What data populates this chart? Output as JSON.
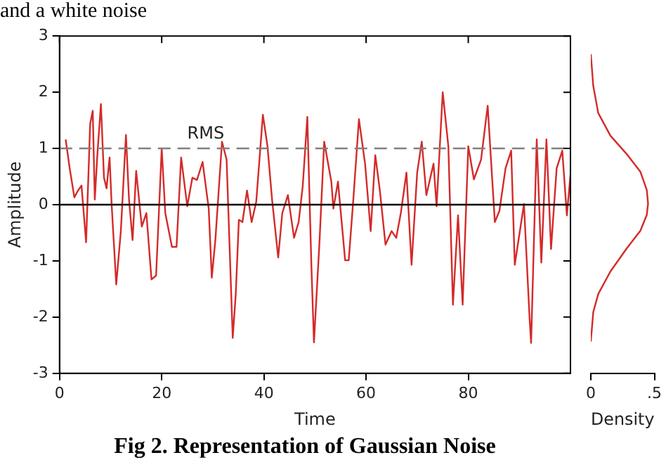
{
  "chart_data": [
    {
      "type": "line",
      "xlabel": "Time",
      "ylabel": "Amplitude",
      "color": "#d42a2a",
      "marker": "none",
      "line_style": "solid",
      "grid": false,
      "legend": false,
      "annotations": [
        "and a white noise",
        "Fig 2. Representation of Gaussian Noise"
      ],
      "xlim": [
        0,
        100
      ],
      "xticks": [
        0,
        20,
        40,
        60,
        80
      ],
      "ylim": [
        -3,
        3
      ],
      "yticks": [
        -3,
        -2,
        -1,
        0,
        1,
        2,
        3
      ],
      "ref_lines": [
        {
          "axis": "y",
          "value": 1,
          "label": "RMS",
          "color": "#808080",
          "line_style": "dashed"
        },
        {
          "axis": "y",
          "value": 0,
          "color": "#000000",
          "line_style": "solid"
        }
      ],
      "x": [
        1.2,
        2.0,
        2.9,
        3.6,
        4.3,
        5.2,
        6.0,
        6.5,
        6.9,
        7.4,
        8.1,
        8.7,
        9.2,
        9.8,
        10.2,
        11.1,
        12.0,
        13.0,
        13.6,
        14.3,
        15.0,
        16.1,
        17.0,
        18.0,
        18.9,
        20.0,
        20.7,
        22.0,
        22.9,
        23.8,
        25.0,
        26.0,
        26.9,
        28.0,
        29.2,
        29.8,
        30.5,
        31.8,
        32.7,
        33.9,
        34.5,
        35.1,
        35.8,
        36.7,
        37.6,
        38.5,
        39.8,
        40.7,
        41.6,
        42.8,
        43.6,
        44.7,
        45.9,
        46.8,
        47.6,
        48.5,
        49.3,
        49.8,
        50.9,
        51.8,
        53.2,
        53.6,
        54.5,
        55.9,
        56.6,
        57.5,
        58.6,
        59.8,
        60.9,
        61.8,
        62.7,
        63.8,
        65.0,
        65.9,
        66.8,
        67.9,
        68.9,
        70.0,
        70.9,
        71.8,
        73.2,
        73.8,
        75.0,
        76.1,
        77.0,
        78.0,
        78.9,
        80.0,
        81.1,
        82.5,
        83.8,
        85.2,
        86.1,
        87.3,
        88.4,
        89.1,
        90.9,
        92.0,
        92.3,
        93.4,
        94.3,
        95.3,
        96.2,
        97.3,
        98.4,
        99.3,
        100
      ],
      "values": [
        1.16,
        0.64,
        0.13,
        0.25,
        0.34,
        -0.67,
        1.44,
        1.67,
        0.09,
        0.88,
        1.79,
        0.48,
        0.29,
        0.84,
        0.0,
        -1.42,
        -0.47,
        1.24,
        0.09,
        -0.63,
        0.6,
        -0.39,
        -0.15,
        -1.33,
        -1.26,
        1.0,
        -0.15,
        -0.75,
        -0.75,
        0.84,
        -0.03,
        0.48,
        0.44,
        0.76,
        -0.07,
        -1.3,
        -0.63,
        1.12,
        0.8,
        -2.37,
        -1.58,
        -0.27,
        -0.31,
        0.25,
        -0.31,
        0.05,
        1.6,
        1.04,
        0.09,
        -0.94,
        -0.15,
        0.17,
        -0.59,
        -0.31,
        0.33,
        1.56,
        -1.1,
        -2.45,
        -0.63,
        1.12,
        0.41,
        -0.07,
        0.41,
        -0.99,
        -0.99,
        0.09,
        1.52,
        0.73,
        -0.47,
        0.88,
        0.25,
        -0.71,
        -0.47,
        -0.59,
        -0.15,
        0.57,
        -1.07,
        0.57,
        1.12,
        0.17,
        0.73,
        -0.03,
        2.0,
        1.04,
        -1.78,
        -0.19,
        -1.78,
        1.04,
        0.45,
        0.8,
        1.76,
        -0.31,
        -0.11,
        0.65,
        0.96,
        -1.07,
        0.01,
        -2.02,
        -2.46,
        1.16,
        -1.03,
        1.16,
        -0.79,
        0.65,
        0.96,
        -0.19,
        0.53
      ]
    },
    {
      "type": "line",
      "xlabel": "Density",
      "color": "#d42a2a",
      "marker": "none",
      "line_style": "solid",
      "grid": false,
      "legend": false,
      "tick_labels": "x",
      "xlim": [
        0,
        0.5
      ],
      "xticks": [
        0,
        {
          "value": 0.5,
          "label": ".5"
        }
      ],
      "ylim": [
        -3,
        3
      ],
      "x": [
        0,
        0.019,
        0.058,
        0.154,
        0.28,
        0.39,
        0.44,
        0.45,
        0.44,
        0.39,
        0.28,
        0.154,
        0.058,
        0.019,
        0
      ],
      "values": [
        2.64,
        2.08,
        1.6,
        1.2,
        0.88,
        0.56,
        0.24,
        0,
        -0.2,
        -0.48,
        -0.8,
        -1.2,
        -1.6,
        -1.92,
        -2.44
      ]
    }
  ]
}
